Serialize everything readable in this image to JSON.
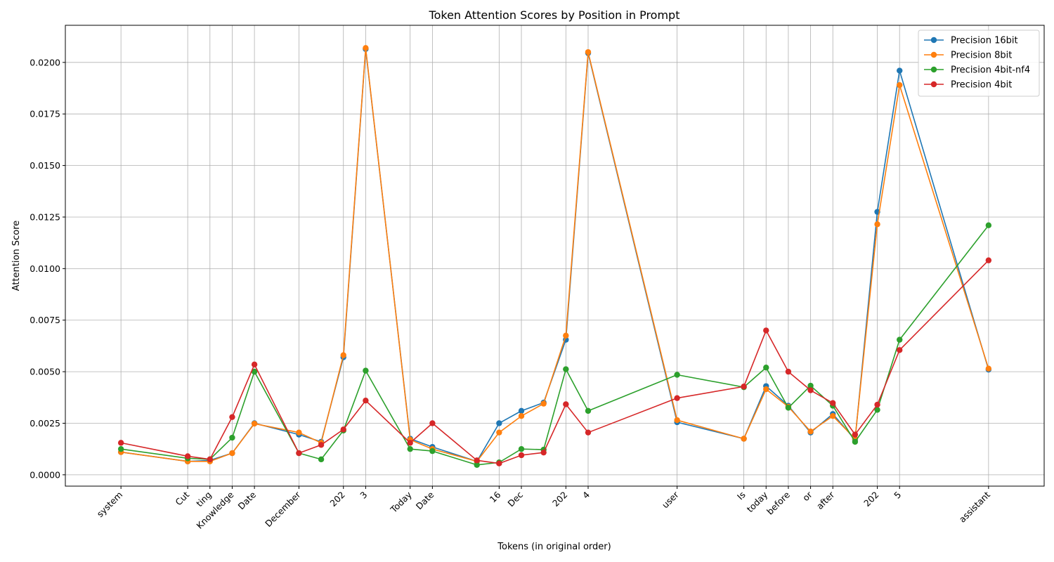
{
  "chart_data": {
    "type": "line",
    "title": "Token Attention Scores by Position in Prompt",
    "xlabel": "Tokens (in original order)",
    "ylabel": "Attention Score",
    "grid": true,
    "legend_position": "top-right",
    "ylim": [
      -0.00055,
      0.0218
    ],
    "xlim": [
      -2.5,
      41.5
    ],
    "x_positions": [
      0,
      3,
      4,
      5,
      6,
      8,
      9,
      10,
      11,
      13,
      14,
      16,
      17,
      18,
      19,
      20,
      21,
      25,
      28,
      29,
      30,
      31,
      32,
      33,
      34,
      35,
      39
    ],
    "tick_positions": [
      0,
      3,
      4,
      5,
      6,
      8,
      10,
      11,
      13,
      14,
      17,
      18,
      20,
      21,
      25,
      28,
      29,
      30,
      31,
      32,
      34,
      35,
      39
    ],
    "tick_labels": [
      "system",
      "Cut",
      "ting",
      "Knowledge",
      "Date",
      "December",
      "202",
      "3",
      "Today",
      "Date",
      "16",
      "Dec",
      "202",
      "4",
      "user",
      "Is",
      "today",
      "before",
      "or",
      "after",
      "202",
      "5",
      "assistant"
    ],
    "y_ticks": [
      0.0,
      0.0025,
      0.005,
      0.0075,
      0.01,
      0.0125,
      0.015,
      0.0175,
      0.02
    ],
    "y_tick_labels": [
      "0.0000",
      "0.0025",
      "0.0050",
      "0.0075",
      "0.0100",
      "0.0125",
      "0.0150",
      "0.0175",
      "0.0200"
    ],
    "series": [
      {
        "name": "Precision 16bit",
        "color": "#1f77b4",
        "values": [
          0.0011,
          0.00065,
          0.0007,
          0.00105,
          0.0025,
          0.00195,
          0.0016,
          0.0057,
          0.02065,
          0.00175,
          0.00135,
          0.00065,
          0.0025,
          0.0031,
          0.0035,
          0.00655,
          0.02045,
          0.00255,
          0.00175,
          0.0043,
          0.00335,
          0.00205,
          0.00295,
          0.0017,
          0.01275,
          0.0196,
          0.0051
        ]
      },
      {
        "name": "Precision 8bit",
        "color": "#ff7f0e",
        "values": [
          0.0011,
          0.00065,
          0.00065,
          0.00105,
          0.00248,
          0.00205,
          0.00155,
          0.0058,
          0.0207,
          0.0017,
          0.00125,
          0.00065,
          0.00205,
          0.00285,
          0.00345,
          0.00675,
          0.0205,
          0.00265,
          0.00175,
          0.00415,
          0.0033,
          0.0021,
          0.00285,
          0.00175,
          0.01215,
          0.0189,
          0.00515
        ]
      },
      {
        "name": "Precision 4bit-nf4",
        "color": "#2ca02c",
        "values": [
          0.00125,
          0.0008,
          0.00075,
          0.0018,
          0.005,
          0.00105,
          0.00075,
          0.00215,
          0.00505,
          0.00125,
          0.00115,
          0.00048,
          0.0006,
          0.00125,
          0.00122,
          0.00512,
          0.0031,
          0.00485,
          0.00425,
          0.0052,
          0.00325,
          0.00432,
          0.00335,
          0.0016,
          0.00315,
          0.00655,
          0.0121
        ]
      },
      {
        "name": "Precision 4bit",
        "color": "#d62728",
        "values": [
          0.00155,
          0.0009,
          0.00075,
          0.0028,
          0.00535,
          0.00105,
          0.00145,
          0.0022,
          0.0036,
          0.00155,
          0.0025,
          0.0007,
          0.00055,
          0.00095,
          0.00108,
          0.00342,
          0.00205,
          0.00372,
          0.00428,
          0.007,
          0.005,
          0.0041,
          0.00348,
          0.00195,
          0.0034,
          0.00605,
          0.0104
        ]
      }
    ]
  }
}
